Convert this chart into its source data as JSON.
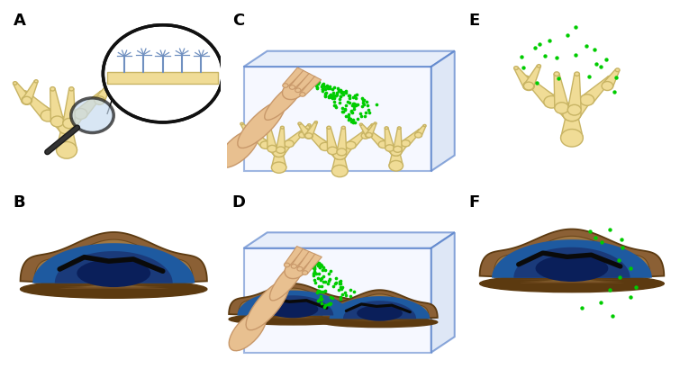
{
  "panel_labels": [
    "A",
    "B",
    "C",
    "D",
    "E",
    "F"
  ],
  "coral_color": "#F0DC96",
  "coral_outline": "#C8B464",
  "clam_brown": "#8B6035",
  "clam_brown_dark": "#5C3A10",
  "clam_brown_light": "#A8824A",
  "clam_blue_dark": "#1A3A7A",
  "clam_blue_mid": "#1E5AA0",
  "clam_blue_light": "#4A8FD0",
  "hand_color": "#E8C090",
  "hand_outline": "#C8986A",
  "green_dot": "#00CC00",
  "box_edge": "#4472C4",
  "box_face_front": "#EEF3FF",
  "box_face_top": "#D8E4F8",
  "box_face_right": "#C8D8F0",
  "magnify_lens": "#C8DCF0",
  "magnify_outline": "#111111",
  "polyp_color": "#7090C0",
  "bg_color": "#FFFFFF",
  "label_fontsize": 13,
  "label_fontweight": "bold"
}
